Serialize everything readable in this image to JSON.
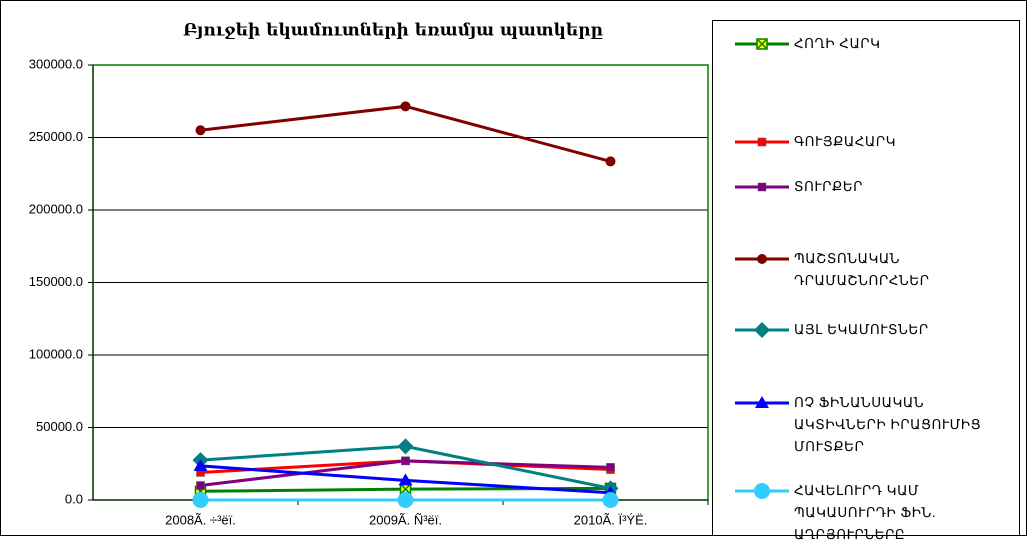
{
  "chart_data": {
    "type": "line",
    "title": "Բյուջեի եկամուտների եռամյա պատկերը",
    "categories": [
      "2008Ã. ÷³ëï.",
      "2009Ã. Ñ³ëï.",
      "2010Ã. Ï³ÝË."
    ],
    "ylim": [
      0,
      300000
    ],
    "yticks": [
      {
        "value": 0,
        "label": "0.0"
      },
      {
        "value": 50000,
        "label": "50000.0"
      },
      {
        "value": 100000,
        "label": "100000.0"
      },
      {
        "value": 150000,
        "label": "150000.0"
      },
      {
        "value": 200000,
        "label": "200000.0"
      },
      {
        "value": 250000,
        "label": "250000.0"
      },
      {
        "value": 300000,
        "label": "300000.0"
      }
    ],
    "grid": true,
    "legend": "right",
    "series": [
      {
        "name": "ՀՈՂԻ ՀԱՐԿ",
        "color": "#008000",
        "marker": "x-square",
        "values": [
          6000,
          7500,
          8000
        ]
      },
      {
        "name": "ԳՈՒՅՔԱՀԱՐԿ",
        "color": "#ff0000",
        "marker": "square",
        "values": [
          19000,
          27000,
          21000
        ]
      },
      {
        "name": "ՏՈՒՐՔԵՐ",
        "color": "#800080",
        "marker": "square",
        "values": [
          10000,
          27000,
          22500
        ]
      },
      {
        "name": "ՊԱՇՏՈՆԱԿԱՆ ԴՐԱՄԱՇՆՈՐՀՆԵՐ",
        "color": "#800000",
        "marker": "circle",
        "values": [
          255000,
          271500,
          233500
        ]
      },
      {
        "name": "ԱՅԼ ԵԿԱՄՈՒՏՆԵՐ",
        "color": "#008080",
        "marker": "diamond",
        "values": [
          27500,
          37000,
          8000
        ]
      },
      {
        "name": "ՈՉ ՖԻՆԱՆՍԱԿԱՆ ԱԿՏԻՎՆԵՐԻ ԻՐԱՑՈՒՄԻՑ ՄՈՒՏՔԵՐ",
        "color": "#0000ff",
        "marker": "triangle",
        "values": [
          23500,
          13500,
          5000
        ]
      },
      {
        "name": "ՀԱՎԵԼՈՒՐԴ ԿԱՄ ՊԱԿԱՍՈՒՐԴԻ ՖԻՆ. ԱՂԲՅՈՒՐՆԵՐԸ",
        "color": "#33ccff",
        "marker": "bigcircle",
        "values": [
          0,
          0,
          0
        ]
      }
    ]
  }
}
